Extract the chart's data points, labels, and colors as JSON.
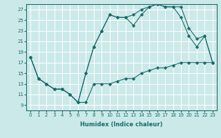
{
  "xlabel": "Humidex (Indice chaleur)",
  "bg_color": "#cce9e9",
  "line_color": "#1a6b6b",
  "grid_color": "#ffffff",
  "xlim": [
    -0.5,
    23.5
  ],
  "ylim": [
    8.0,
    28.0
  ],
  "xticks": [
    0,
    1,
    2,
    3,
    4,
    5,
    6,
    7,
    8,
    9,
    10,
    11,
    12,
    13,
    14,
    15,
    16,
    17,
    18,
    19,
    20,
    21,
    22,
    23
  ],
  "yticks": [
    9,
    11,
    13,
    15,
    17,
    19,
    21,
    23,
    25,
    27
  ],
  "line1_x": [
    0,
    1,
    2,
    3,
    4,
    5,
    6,
    7,
    8,
    9,
    10,
    11,
    12,
    13,
    14,
    15,
    16,
    17,
    18,
    19,
    20,
    21,
    22,
    23
  ],
  "line1_y": [
    18,
    14,
    13,
    12,
    12,
    11,
    9.5,
    9.5,
    13,
    13,
    13,
    13.5,
    14,
    14,
    15,
    15.5,
    16,
    16,
    16.5,
    17,
    17,
    17,
    17,
    17
  ],
  "line2_x": [
    0,
    1,
    2,
    3,
    4,
    5,
    6,
    7,
    8,
    9,
    10,
    11,
    12,
    13,
    14,
    15,
    16,
    17,
    18,
    19,
    20,
    21,
    22,
    23
  ],
  "line2_y": [
    18,
    14,
    13,
    12,
    12,
    11,
    9.5,
    15,
    20,
    23,
    26,
    25.5,
    25.5,
    24,
    26,
    27.5,
    28,
    27.5,
    27.5,
    25.5,
    22,
    20,
    22,
    17
  ],
  "line3_x": [
    0,
    1,
    2,
    3,
    4,
    5,
    6,
    7,
    8,
    9,
    10,
    11,
    12,
    13,
    14,
    15,
    16,
    17,
    18,
    19,
    20,
    21,
    22,
    23
  ],
  "line3_y": [
    18,
    14,
    13,
    12,
    12,
    11,
    9.5,
    15,
    20,
    23,
    26,
    25.5,
    25.5,
    26,
    27,
    27.5,
    28,
    27.5,
    27.5,
    27.5,
    23.5,
    21.5,
    22,
    17
  ]
}
